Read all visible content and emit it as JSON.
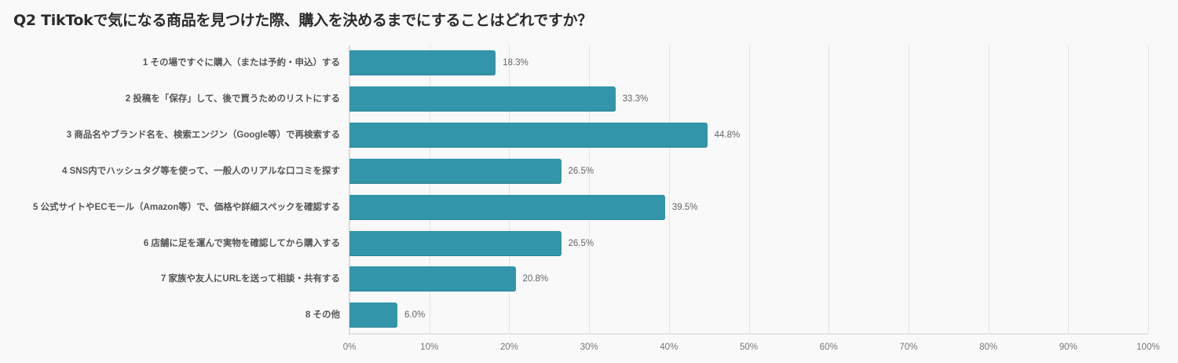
{
  "title": "Q2 TikTokで気になる商品を見つけた際、購入を決めるまでにすることはどれですか？",
  "colors": {
    "bar": "#3395a9",
    "grid": "#e3e3e3",
    "background": "#f9f9f9"
  },
  "chart_data": {
    "type": "bar",
    "orientation": "horizontal",
    "title": "Q2 TikTokで気になる商品を見つけた際、購入を決めるまでにすることはどれですか？",
    "xlabel": "",
    "ylabel": "",
    "categories": [
      "1 その場ですぐに購入（または予約・申込）する",
      "2 投稿を「保存」して、後で買うためのリストにする",
      "3 商品名やブランド名を、検索エンジン（Google等）で再検索する",
      "4 SNS内でハッシュタグ等を使って、一般人のリアルな口コミを探す",
      "5 公式サイトやECモール（Amazon等）で、価格や詳細スペックを確認する",
      "6 店舗に足を運んで実物を確認してから購入する",
      "7 家族や友人にURLを送って相談・共有する",
      "8 その他"
    ],
    "values": [
      18.3,
      33.3,
      44.8,
      26.5,
      39.5,
      26.5,
      20.8,
      6.0
    ],
    "value_labels": [
      "18.3%",
      "33.3%",
      "44.8%",
      "26.5%",
      "39.5%",
      "26.5%",
      "20.8%",
      "6.0%"
    ],
    "xlim": [
      0,
      100
    ],
    "xticks": [
      "0%",
      "10%",
      "20%",
      "30%",
      "40%",
      "50%",
      "60%",
      "70%",
      "80%",
      "90%",
      "100%"
    ],
    "grid": true,
    "legend": "none"
  }
}
